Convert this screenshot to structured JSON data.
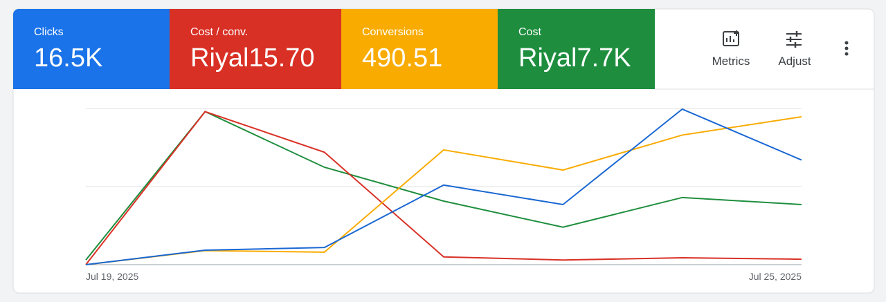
{
  "buttons": [
    "Metrics",
    "Adjust"
  ],
  "chart_data": {
    "type": "line",
    "categories": [
      "Jul 19, 2025",
      null,
      null,
      null,
      null,
      null,
      "Jul 25, 2025"
    ],
    "ylim": [
      0,
      100
    ],
    "gridlines": [
      0,
      50,
      100
    ],
    "series": [
      {
        "name": "Clicks",
        "total": "16.5K",
        "color": "#1a73e8",
        "line_color": "#1967d2",
        "values": [
          0,
          9.3,
          11,
          51,
          38.5,
          99.6,
          67
        ]
      },
      {
        "name": "Cost / conv.",
        "total": "Riyal15.70",
        "color": "#d93025",
        "line_color": "#d93025",
        "values": [
          0,
          98,
          72,
          5,
          3,
          4.4,
          3.5
        ]
      },
      {
        "name": "Conversions",
        "total": "490.51",
        "color": "#f9ab00",
        "line_color": "#f9ab00",
        "values": [
          0,
          9,
          8,
          73.5,
          60.6,
          83,
          94.7
        ]
      },
      {
        "name": "Cost",
        "total": "Riyal7.7K",
        "color": "#1e8e3e",
        "line_color": "#1e8e3e",
        "values": [
          3,
          98,
          62.4,
          40.7,
          24,
          43,
          38.5
        ]
      }
    ]
  }
}
